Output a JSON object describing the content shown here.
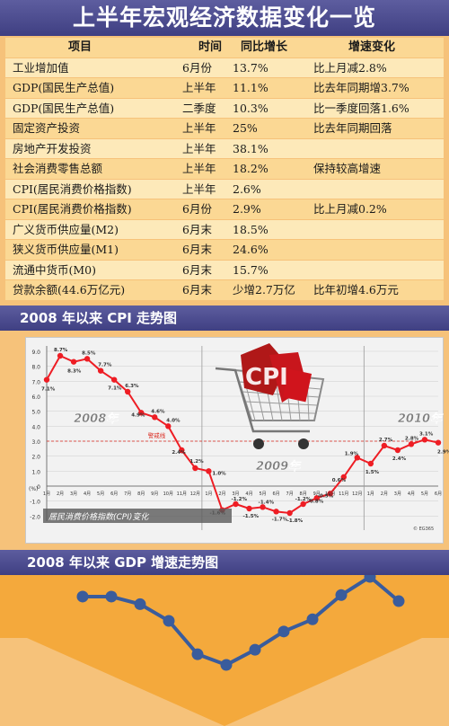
{
  "title": "上半年宏观经济数据变化一览",
  "table": {
    "headers": [
      "项目",
      "时间",
      "同比增长",
      "增速变化"
    ],
    "rows": [
      [
        "工业增加值",
        "6月份",
        "13.7%",
        "比上月减2.8%"
      ],
      [
        "GDP(国民生产总值)",
        "上半年",
        "11.1%",
        "比去年同期增3.7%"
      ],
      [
        "GDP(国民生产总值)",
        "二季度",
        "10.3%",
        "比一季度回落1.6%"
      ],
      [
        "固定资产投资",
        "上半年",
        "25%",
        "比去年同期回落"
      ],
      [
        "房地产开发投资",
        "上半年",
        "38.1%",
        ""
      ],
      [
        "社会消费零售总额",
        "上半年",
        "18.2%",
        "保持较高增速"
      ],
      [
        "CPI(居民消费价格指数)",
        "上半年",
        "2.6%",
        ""
      ],
      [
        "CPI(居民消费价格指数)",
        "6月份",
        "2.9%",
        "比上月减0.2%"
      ],
      [
        "广义货币供应量(M2)",
        "6月末",
        "18.5%",
        ""
      ],
      [
        "狭义货币供应量(M1)",
        "6月末",
        "24.6%",
        ""
      ],
      [
        "流通中货币(M0)",
        "6月末",
        "15.7%",
        ""
      ],
      [
        "贷款余额(44.6万亿元)",
        "6月末",
        "少增2.7万亿",
        "比年初增4.6万元"
      ]
    ]
  },
  "cpi_section_title": "2008 年以来 CPI 走势图",
  "gdp_section_title": "2008 年以来 GDP 增速走势图",
  "colors": {
    "banner": "#4b4b8f",
    "background": "#f6c27a",
    "cpi_line": "#ee1d24",
    "gdp_line": "#3a5c9c",
    "warning_line": "#d9261c"
  },
  "chart_data": [
    {
      "type": "line",
      "title": "2008 年以来 CPI 走势图",
      "ylabel": "(%)",
      "ylim": [
        -2.0,
        9.0
      ],
      "yticks": [
        "9.0",
        "8.0",
        "7.0",
        "6.0",
        "5.0",
        "4.0",
        "3.0",
        "2.0",
        "1.0",
        "0",
        "-1.0",
        "-2.0"
      ],
      "categories": [
        "1月",
        "2月",
        "3月",
        "4月",
        "5月",
        "6月",
        "7月",
        "8月",
        "9月",
        "10月",
        "11月",
        "12月",
        "1月",
        "2月",
        "3月",
        "4月",
        "5月",
        "6月",
        "7月",
        "8月",
        "9月",
        "10月",
        "11月",
        "12月",
        "1月",
        "2月",
        "3月",
        "4月",
        "5月",
        "6月"
      ],
      "values": [
        7.1,
        8.7,
        8.3,
        8.5,
        7.7,
        7.1,
        6.3,
        4.9,
        4.6,
        4.0,
        2.4,
        1.2,
        1.0,
        -1.6,
        -1.2,
        -1.5,
        -1.4,
        -1.7,
        -1.8,
        -1.2,
        -0.8,
        -0.5,
        0.6,
        1.9,
        1.5,
        2.7,
        2.4,
        2.8,
        3.1,
        2.9
      ],
      "value_labels": [
        "7.1%",
        "8.7%",
        "8.3%",
        "8.5%",
        "7.7%",
        "7.1%",
        "6.3%",
        "4.9%",
        "4.6%",
        "4.0%",
        "2.4%",
        "1.2%",
        "1.0%",
        "-1.6%",
        "-1.2%",
        "-1.5%",
        "-1.4%",
        "-1.7%",
        "-1.8%",
        "-1.2%",
        "-0.8%",
        "-0.5%",
        "0.6%",
        "1.9%",
        "1.5%",
        "2.7%",
        "2.4%",
        "2.8%",
        "3.1%",
        "2.9%"
      ],
      "warning_line": {
        "value": 3.0,
        "label": "警戒线"
      },
      "year_labels": [
        "2008年",
        "2009年",
        "2010年"
      ],
      "caption": "居民消费价格指数(CPI)变化",
      "credit": "© EG365",
      "logo_text": "CPI"
    },
    {
      "type": "line",
      "title": "2008 年以来 GDP 增速走势图",
      "values": [
        10.6,
        10.6,
        10.1,
        9.0,
        6.8,
        6.1,
        7.1,
        8.3,
        9.1,
        10.7,
        11.9,
        10.3
      ]
    }
  ]
}
